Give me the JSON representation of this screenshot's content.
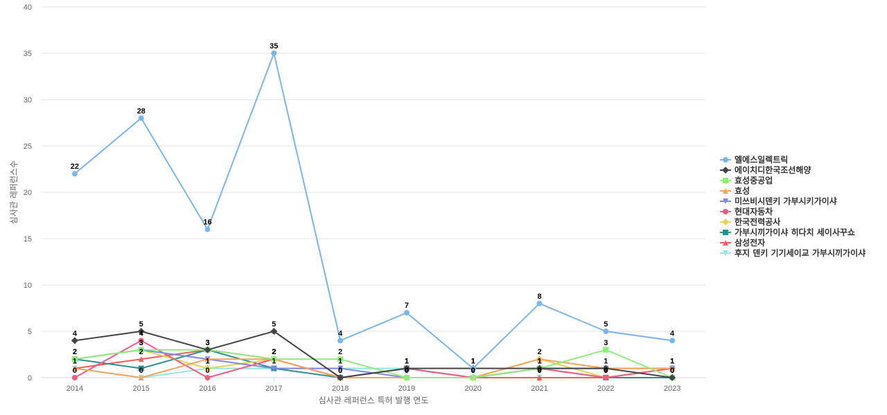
{
  "chart_data": {
    "type": "line",
    "xlabel": "심사관 레퍼런스 특허 발행 연도",
    "ylabel": "심사관 레퍼런스수",
    "ylim": [
      0,
      40
    ],
    "yticks": [
      0,
      5,
      10,
      15,
      20,
      25,
      30,
      35,
      40
    ],
    "categories": [
      "2014",
      "2015",
      "2016",
      "2017",
      "2018",
      "2019",
      "2020",
      "2021",
      "2022",
      "2023"
    ],
    "grid": true,
    "legend_position": "right",
    "series": [
      {
        "name": "엘에스일렉트릭",
        "color": "#7cb5ec",
        "marker": "circle",
        "values": [
          22,
          28,
          16,
          35,
          4,
          7,
          1,
          8,
          5,
          4
        ],
        "show_labels": true
      },
      {
        "name": "에이치디한국조선해양",
        "color": "#434348",
        "marker": "diamond",
        "values": [
          4,
          5,
          3,
          5,
          0,
          1,
          1,
          1,
          1,
          0
        ],
        "show_labels": true
      },
      {
        "name": "효성중공업",
        "color": "#90ed7d",
        "marker": "square",
        "values": [
          2,
          3,
          3,
          2,
          2,
          0,
          0,
          1,
          3,
          0
        ],
        "show_labels": true
      },
      {
        "name": "효성",
        "color": "#f7a35c",
        "marker": "triangle",
        "values": [
          1,
          0,
          2,
          2,
          0,
          0,
          0,
          2,
          1,
          1
        ],
        "show_labels": false
      },
      {
        "name": "미쓰비시덴키 가부시키가이샤",
        "color": "#8085e9",
        "marker": "triangle-down",
        "values": [
          2,
          3,
          2,
          1,
          1,
          0,
          0,
          1,
          1,
          1
        ],
        "show_labels": false
      },
      {
        "name": "현대자동차",
        "color": "#f15c80",
        "marker": "circle",
        "values": [
          0,
          4,
          0,
          2,
          0,
          1,
          0,
          1,
          0,
          1
        ],
        "show_labels": true
      },
      {
        "name": "한국전력공사",
        "color": "#e4d354",
        "marker": "diamond",
        "values": [
          2,
          3,
          1,
          2,
          0,
          0,
          0,
          2,
          0,
          1
        ],
        "show_labels": true
      },
      {
        "name": "가부시끼가이샤 히다치 세이사꾸쇼",
        "color": "#2b908f",
        "marker": "square",
        "values": [
          2,
          1,
          3,
          1,
          0,
          1,
          0,
          1,
          0,
          0
        ],
        "show_labels": false
      },
      {
        "name": "삼성전자",
        "color": "#f45b5b",
        "marker": "triangle",
        "values": [
          1,
          2,
          3,
          2,
          0,
          0,
          0,
          0,
          0,
          1
        ],
        "show_labels": true
      },
      {
        "name": "후지 덴키 기기세이교 가부시끼가이샤",
        "color": "#91e8e1",
        "marker": "triangle-down",
        "values": [
          1,
          0,
          1,
          1,
          1,
          1,
          0,
          0,
          0,
          0
        ],
        "show_labels": true
      }
    ]
  }
}
